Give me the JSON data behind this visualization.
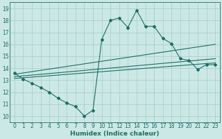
{
  "xlabel": "Humidex (Indice chaleur)",
  "xlim": [
    -0.5,
    23.5
  ],
  "ylim": [
    9.5,
    19.5
  ],
  "yticks": [
    10,
    11,
    12,
    13,
    14,
    15,
    16,
    17,
    18,
    19
  ],
  "xticks": [
    0,
    1,
    2,
    3,
    4,
    5,
    6,
    7,
    8,
    9,
    10,
    11,
    12,
    13,
    14,
    15,
    16,
    17,
    18,
    19,
    20,
    21,
    22,
    23
  ],
  "bg_color": "#cce8e6",
  "grid_color": "#aacfcd",
  "line_color": "#1a6e65",
  "main_line_x": [
    0,
    1,
    2,
    3,
    4,
    5,
    6,
    7,
    8,
    9,
    10,
    11,
    12,
    13,
    14,
    15,
    16,
    17,
    18,
    19,
    20,
    21,
    22,
    23
  ],
  "main_line_y": [
    13.6,
    13.1,
    12.75,
    12.4,
    12.0,
    11.5,
    11.1,
    10.8,
    10.0,
    10.5,
    16.4,
    18.0,
    18.2,
    17.4,
    18.85,
    17.5,
    17.5,
    16.5,
    16.05,
    14.8,
    14.65,
    13.9,
    14.3,
    14.3
  ],
  "avg_line1_x": [
    0,
    23
  ],
  "avg_line1_y": [
    13.5,
    16.0
  ],
  "avg_line2_x": [
    0,
    23
  ],
  "avg_line2_y": [
    13.3,
    14.8
  ],
  "avg_line3_x": [
    0,
    23
  ],
  "avg_line3_y": [
    13.15,
    14.45
  ]
}
